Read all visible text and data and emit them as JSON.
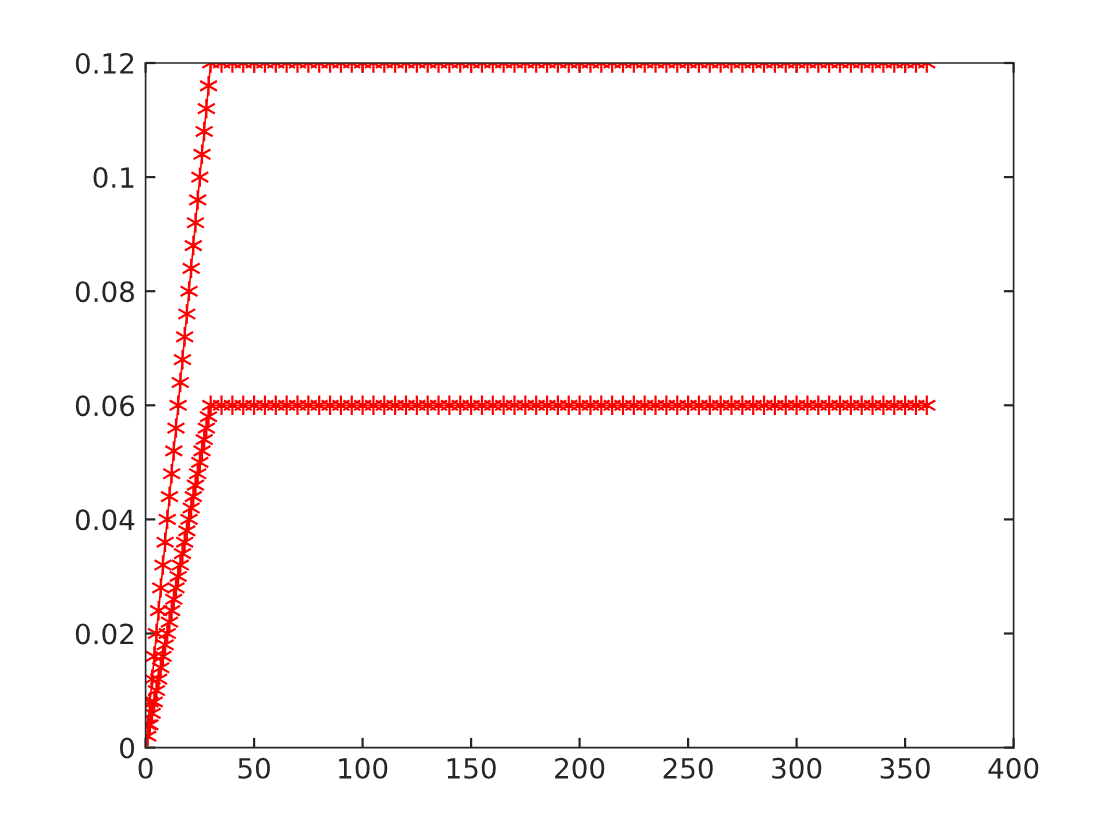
{
  "chart_data": {
    "type": "line",
    "marker": "cross",
    "line_style": "solid",
    "grid": false,
    "xlim": [
      0,
      400
    ],
    "xticks": [
      0,
      50,
      100,
      150,
      200,
      250,
      300,
      350,
      400
    ],
    "ylim": [
      0,
      0.12
    ],
    "yticks": [
      0,
      0.02,
      0.04,
      0.06,
      0.08,
      0.1,
      0.12
    ],
    "series": [
      {
        "color": "#ff0000",
        "x": [
          1,
          2,
          3,
          4,
          5,
          6,
          7,
          8,
          9,
          10,
          11,
          12,
          13,
          14,
          15,
          16,
          17,
          18,
          19,
          20,
          21,
          22,
          23,
          24,
          25,
          26,
          27,
          28,
          29,
          30,
          35,
          40,
          45,
          50,
          55,
          60,
          65,
          70,
          75,
          80,
          85,
          90,
          95,
          100,
          105,
          110,
          115,
          120,
          125,
          130,
          135,
          140,
          145,
          150,
          155,
          160,
          165,
          170,
          175,
          180,
          185,
          190,
          195,
          200,
          205,
          210,
          215,
          220,
          225,
          230,
          235,
          240,
          245,
          250,
          255,
          260,
          265,
          270,
          275,
          280,
          285,
          290,
          295,
          300,
          305,
          310,
          315,
          320,
          325,
          330,
          335,
          340,
          345,
          350,
          355,
          360
        ],
        "values": [
          0.004,
          0.008,
          0.012,
          0.016,
          0.02,
          0.024,
          0.028,
          0.032,
          0.036,
          0.04,
          0.044,
          0.048,
          0.052,
          0.056,
          0.06,
          0.064,
          0.068,
          0.072,
          0.076,
          0.08,
          0.084,
          0.088,
          0.092,
          0.096,
          0.1,
          0.104,
          0.108,
          0.112,
          0.116,
          0.12,
          0.12,
          0.12,
          0.12,
          0.12,
          0.12,
          0.12,
          0.12,
          0.12,
          0.12,
          0.12,
          0.12,
          0.12,
          0.12,
          0.12,
          0.12,
          0.12,
          0.12,
          0.12,
          0.12,
          0.12,
          0.12,
          0.12,
          0.12,
          0.12,
          0.12,
          0.12,
          0.12,
          0.12,
          0.12,
          0.12,
          0.12,
          0.12,
          0.12,
          0.12,
          0.12,
          0.12,
          0.12,
          0.12,
          0.12,
          0.12,
          0.12,
          0.12,
          0.12,
          0.12,
          0.12,
          0.12,
          0.12,
          0.12,
          0.12,
          0.12,
          0.12,
          0.12,
          0.12,
          0.12,
          0.12,
          0.12,
          0.12,
          0.12,
          0.12,
          0.12,
          0.12,
          0.12,
          0.12,
          0.12,
          0.12,
          0.12
        ]
      },
      {
        "color": "#ff0000",
        "x": [
          1,
          2,
          3,
          4,
          5,
          6,
          7,
          8,
          9,
          10,
          11,
          12,
          13,
          14,
          15,
          16,
          17,
          18,
          19,
          20,
          21,
          22,
          23,
          24,
          25,
          26,
          27,
          28,
          29,
          30,
          35,
          40,
          45,
          50,
          55,
          60,
          65,
          70,
          75,
          80,
          85,
          90,
          95,
          100,
          105,
          110,
          115,
          120,
          125,
          130,
          135,
          140,
          145,
          150,
          155,
          160,
          165,
          170,
          175,
          180,
          185,
          190,
          195,
          200,
          205,
          210,
          215,
          220,
          225,
          230,
          235,
          240,
          245,
          250,
          255,
          260,
          265,
          270,
          275,
          280,
          285,
          290,
          295,
          300,
          305,
          310,
          315,
          320,
          325,
          330,
          335,
          340,
          345,
          350,
          355,
          360
        ],
        "values": [
          0.002,
          0.004,
          0.006,
          0.008,
          0.01,
          0.012,
          0.014,
          0.016,
          0.018,
          0.02,
          0.022,
          0.024,
          0.026,
          0.028,
          0.03,
          0.032,
          0.034,
          0.036,
          0.038,
          0.04,
          0.042,
          0.044,
          0.046,
          0.048,
          0.05,
          0.052,
          0.054,
          0.056,
          0.058,
          0.06,
          0.06,
          0.06,
          0.06,
          0.06,
          0.06,
          0.06,
          0.06,
          0.06,
          0.06,
          0.06,
          0.06,
          0.06,
          0.06,
          0.06,
          0.06,
          0.06,
          0.06,
          0.06,
          0.06,
          0.06,
          0.06,
          0.06,
          0.06,
          0.06,
          0.06,
          0.06,
          0.06,
          0.06,
          0.06,
          0.06,
          0.06,
          0.06,
          0.06,
          0.06,
          0.06,
          0.06,
          0.06,
          0.06,
          0.06,
          0.06,
          0.06,
          0.06,
          0.06,
          0.06,
          0.06,
          0.06,
          0.06,
          0.06,
          0.06,
          0.06,
          0.06,
          0.06,
          0.06,
          0.06,
          0.06,
          0.06,
          0.06,
          0.06,
          0.06,
          0.06,
          0.06,
          0.06,
          0.06,
          0.06,
          0.06,
          0.06
        ]
      }
    ]
  }
}
